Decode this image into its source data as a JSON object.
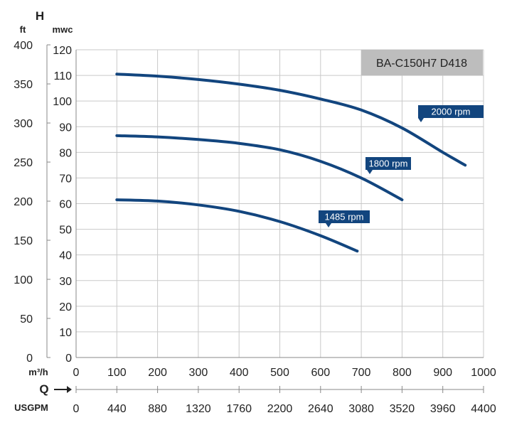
{
  "chart_data": {
    "type": "line",
    "title": "BA-C150H7 D418",
    "y_axis": {
      "symbol": "H",
      "unit_left": "ft",
      "unit_right": "mwc",
      "ticks_ft": [
        0,
        50,
        100,
        150,
        200,
        250,
        300,
        350,
        400
      ],
      "ticks_mwc": [
        0,
        10,
        20,
        30,
        40,
        50,
        60,
        70,
        80,
        90,
        100,
        110,
        120
      ],
      "ylim_mwc": [
        0,
        120
      ]
    },
    "x_axis": {
      "symbol": "Q",
      "unit_top": "m³/h",
      "unit_bottom": "USGPM",
      "ticks_m3h": [
        0,
        100,
        200,
        300,
        400,
        500,
        600,
        700,
        800,
        900,
        1000
      ],
      "ticks_usgpm": [
        0,
        440,
        880,
        1320,
        1760,
        2200,
        2640,
        3080,
        3520,
        3960,
        4400
      ],
      "xlim_m3h": [
        0,
        1000
      ]
    },
    "grid": true,
    "series": [
      {
        "name": "2000 rpm",
        "x": [
          100,
          200,
          300,
          400,
          500,
          600,
          700,
          800,
          900,
          955
        ],
        "y": [
          110.5,
          109.7,
          108.4,
          106.6,
          104.2,
          100.8,
          96.5,
          89.5,
          80,
          75
        ]
      },
      {
        "name": "1800 rpm",
        "x": [
          100,
          200,
          300,
          400,
          500,
          600,
          700,
          800
        ],
        "y": [
          86.5,
          86,
          85,
          83.5,
          81,
          76.5,
          70,
          61.5
        ]
      },
      {
        "name": "1485 rpm",
        "x": [
          100,
          200,
          300,
          400,
          500,
          600,
          690
        ],
        "y": [
          61.5,
          61,
          59.5,
          57,
          53,
          47.5,
          41.5
        ]
      }
    ]
  },
  "colors": {
    "curve": "#12457e",
    "callout": "#12457e",
    "title_box": "#bdbdbd",
    "grid": "#c9c9c9"
  }
}
